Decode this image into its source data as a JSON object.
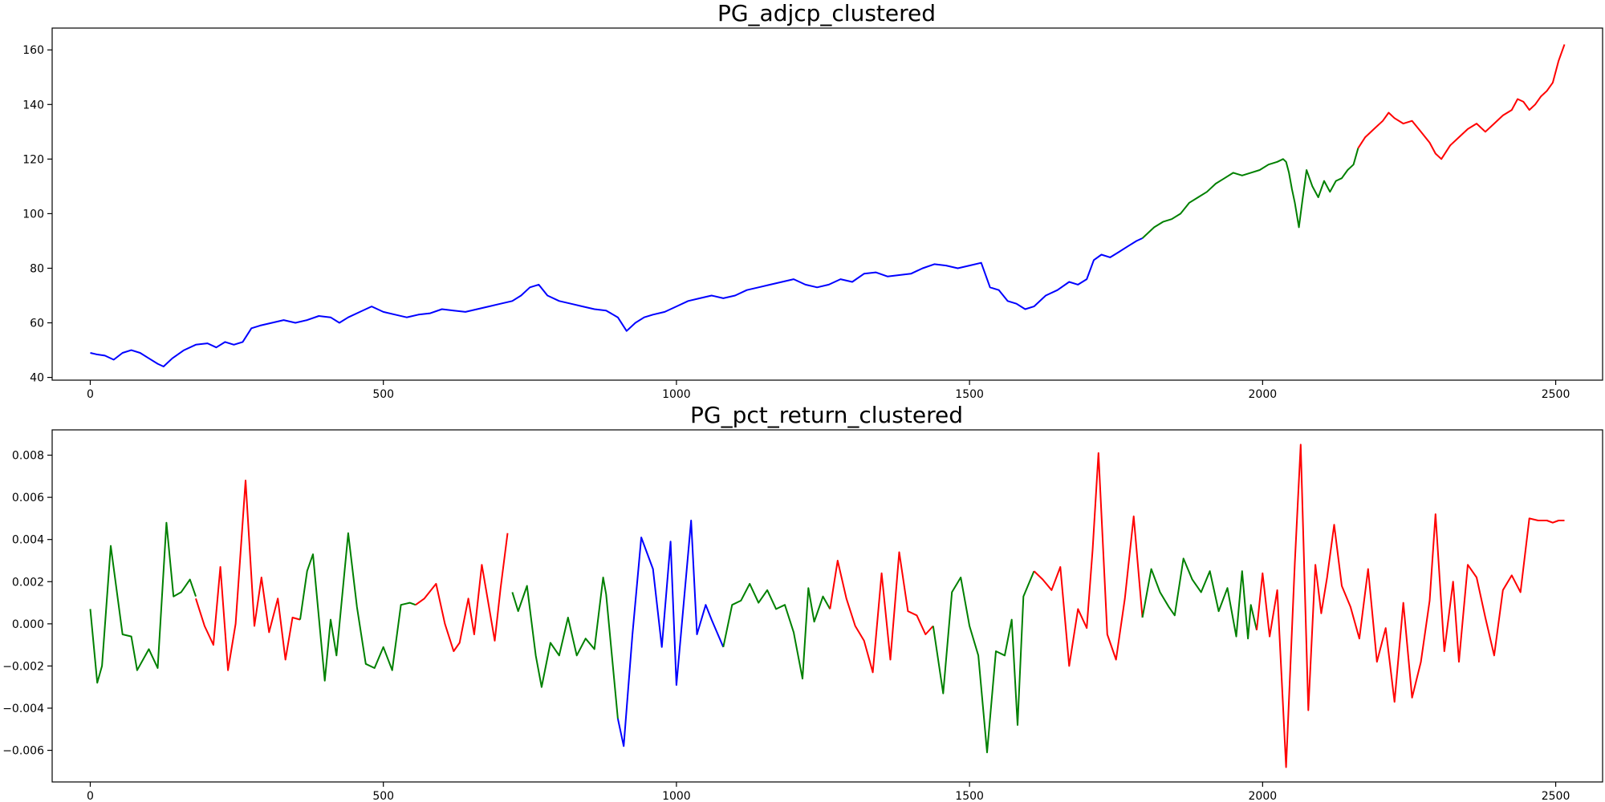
{
  "chart_data": [
    {
      "type": "line",
      "title": "PG_adjcp_clustered",
      "xlabel": "",
      "ylabel": "",
      "xlim": [
        -65,
        2580
      ],
      "ylim": [
        39,
        168
      ],
      "xticks": [
        0,
        500,
        1000,
        1500,
        2000,
        2500
      ],
      "yticks": [
        40,
        60,
        80,
        100,
        120,
        140,
        160
      ],
      "grid": false,
      "legend": "none",
      "colors": {
        "blue": "#0000ff",
        "green": "#008000",
        "red": "#ff0000"
      },
      "series": [
        {
          "color": "blue",
          "x": [
            0,
            10,
            25,
            40,
            55,
            70,
            85,
            100,
            115,
            125,
            140,
            160,
            180,
            200,
            215,
            230,
            245,
            260,
            275,
            290,
            310,
            330,
            350,
            370,
            390,
            410,
            425,
            440,
            460,
            480,
            500,
            520,
            540,
            560,
            580,
            600,
            620,
            640,
            660,
            680,
            700,
            720,
            735,
            750,
            765,
            780,
            800,
            820,
            840,
            860,
            880,
            900,
            915,
            930,
            945,
            960,
            980,
            1000,
            1020,
            1040,
            1060,
            1080,
            1100,
            1120,
            1140,
            1160,
            1180,
            1200,
            1220,
            1240,
            1260,
            1280,
            1300,
            1320,
            1340,
            1360,
            1380,
            1400,
            1420,
            1440,
            1460,
            1480,
            1500,
            1520,
            1535,
            1550,
            1565,
            1580,
            1595,
            1610,
            1630,
            1650,
            1670,
            1685,
            1700,
            1712,
            1725,
            1740,
            1755,
            1770,
            1785,
            1795
          ],
          "y": [
            49,
            48.5,
            48,
            46.5,
            49,
            50,
            49,
            47,
            45,
            44,
            47,
            50,
            52,
            52.5,
            51,
            53,
            52,
            53,
            58,
            59,
            60,
            61,
            60,
            61,
            62.5,
            62,
            60,
            62,
            64,
            66,
            64,
            63,
            62,
            63,
            63.5,
            65,
            64.5,
            64,
            65,
            66,
            67,
            68,
            70,
            73,
            74,
            70,
            68,
            67,
            66,
            65,
            64.5,
            62,
            57,
            60,
            62,
            63,
            64,
            66,
            68,
            69,
            70,
            69,
            70,
            72,
            73,
            74,
            75,
            76,
            74,
            73,
            74,
            76,
            75,
            78,
            78.5,
            77,
            77.5,
            78,
            80,
            81.5,
            81,
            80,
            81,
            82,
            73,
            72,
            68,
            67,
            65,
            66,
            70,
            72,
            75,
            74,
            76,
            83,
            85,
            84,
            86,
            88,
            90,
            91
          ]
        },
        {
          "color": "green",
          "x": [
            1795,
            1815,
            1830,
            1845,
            1860,
            1875,
            1890,
            1905,
            1920,
            1935,
            1950,
            1965,
            1980,
            1995,
            2010,
            2025,
            2035,
            2040,
            2045,
            2050,
            2055,
            2062,
            2068,
            2075,
            2085,
            2095,
            2105,
            2115,
            2125,
            2135,
            2145,
            2155,
            2163
          ],
          "y": [
            91,
            95,
            97,
            98,
            100,
            104,
            106,
            108,
            111,
            113,
            115,
            114,
            115,
            116,
            118,
            119,
            120,
            119,
            115,
            109,
            104,
            95,
            105,
            116,
            110,
            106,
            112,
            108,
            112,
            113,
            116,
            118,
            124
          ]
        },
        {
          "color": "red",
          "x": [
            2163,
            2175,
            2190,
            2205,
            2215,
            2225,
            2240,
            2255,
            2270,
            2285,
            2295,
            2305,
            2320,
            2335,
            2350,
            2365,
            2380,
            2395,
            2410,
            2425,
            2435,
            2445,
            2455,
            2465,
            2475,
            2485,
            2495,
            2505,
            2515
          ],
          "y": [
            124,
            128,
            131,
            134,
            137,
            135,
            133,
            134,
            130,
            126,
            122,
            120,
            125,
            128,
            131,
            133,
            130,
            133,
            136,
            138,
            142,
            141,
            138,
            140,
            143,
            145,
            148,
            156,
            162
          ]
        }
      ]
    },
    {
      "type": "line",
      "title": "PG_pct_return_clustered",
      "xlabel": "",
      "ylabel": "",
      "xlim": [
        -65,
        2580
      ],
      "ylim": [
        -0.0075,
        0.0092
      ],
      "xticks": [
        0,
        500,
        1000,
        1500,
        2000,
        2500
      ],
      "yticks": [
        -0.006,
        -0.004,
        -0.002,
        0.0,
        0.002,
        0.004,
        0.006,
        0.008
      ],
      "grid": false,
      "legend": "none",
      "colors": {
        "blue": "#0000ff",
        "green": "#008000",
        "red": "#ff0000"
      },
      "series": [
        {
          "color": "green",
          "x": [
            0,
            12,
            20,
            35,
            55,
            70,
            80,
            100,
            115,
            130,
            142,
            155,
            170,
            180
          ],
          "y": [
            0.0007,
            -0.0028,
            -0.002,
            0.0037,
            -0.0005,
            -0.0006,
            -0.0022,
            -0.0012,
            -0.0021,
            0.0048,
            0.0013,
            0.0015,
            0.0021,
            0.0013
          ]
        },
        {
          "color": "red",
          "x": [
            180,
            195,
            210,
            222,
            235,
            248,
            265,
            280,
            292,
            305,
            320,
            333,
            345,
            358
          ],
          "y": [
            0.0012,
            -0.0001,
            -0.001,
            0.0027,
            -0.0022,
            0.0,
            0.0068,
            -0.0001,
            0.0022,
            -0.0004,
            0.0012,
            -0.0017,
            0.0003,
            0.0002
          ]
        },
        {
          "color": "green",
          "x": [
            358,
            370,
            380,
            400,
            410,
            420,
            440,
            455,
            470,
            485,
            500,
            515,
            530,
            545,
            555
          ],
          "y": [
            0.0002,
            0.0025,
            0.0033,
            -0.0027,
            0.0002,
            -0.0015,
            0.0043,
            0.0008,
            -0.0019,
            -0.0021,
            -0.0011,
            -0.0022,
            0.0009,
            0.001,
            0.0009
          ]
        },
        {
          "color": "red",
          "x": [
            555,
            570,
            590,
            605,
            620,
            630,
            645,
            655,
            668,
            690,
            700,
            712
          ],
          "y": [
            0.0009,
            0.0012,
            0.0019,
            0.0,
            -0.0013,
            -0.0009,
            0.0012,
            -0.0005,
            0.0028,
            -0.0008,
            0.0017,
            0.0043
          ]
        },
        {
          "color": "green",
          "x": [
            720,
            730,
            745,
            760,
            770,
            785,
            800,
            815,
            830,
            845,
            860,
            875,
            880,
            900
          ],
          "y": [
            0.0015,
            0.0006,
            0.0018,
            -0.0015,
            -0.003,
            -0.0009,
            -0.0015,
            0.0003,
            -0.0015,
            -0.0007,
            -0.0012,
            0.0022,
            0.0014,
            -0.0045
          ]
        },
        {
          "color": "blue",
          "x": [
            900,
            910,
            925,
            940,
            960,
            975,
            990,
            1000,
            1015,
            1025,
            1035,
            1050,
            1060,
            1080
          ],
          "y": [
            -0.0045,
            -0.0058,
            -0.0005,
            0.0041,
            0.0026,
            -0.0011,
            0.0039,
            -0.0029,
            0.0018,
            0.0049,
            -0.0005,
            0.0009,
            0.0002,
            -0.0011
          ]
        },
        {
          "color": "green",
          "x": [
            1080,
            1095,
            1110,
            1125,
            1140,
            1155,
            1170,
            1185,
            1200,
            1215,
            1225,
            1235,
            1250,
            1262
          ],
          "y": [
            -0.0011,
            0.0009,
            0.0011,
            0.0019,
            0.001,
            0.0016,
            0.0007,
            0.0009,
            -0.0004,
            -0.0026,
            0.0017,
            0.0001,
            0.0013,
            0.0007
          ]
        },
        {
          "color": "red",
          "x": [
            1262,
            1275,
            1290,
            1305,
            1320,
            1335,
            1350,
            1365,
            1380,
            1395,
            1410,
            1425,
            1438
          ],
          "y": [
            0.0007,
            0.003,
            0.0012,
            -0.0001,
            -0.0008,
            -0.0023,
            0.0024,
            -0.0017,
            0.0034,
            0.0006,
            0.0004,
            -0.0005,
            -0.0001
          ]
        },
        {
          "color": "green",
          "x": [
            1438,
            1455,
            1470,
            1485,
            1500,
            1515,
            1530,
            1545,
            1560,
            1572,
            1582,
            1592,
            1610
          ],
          "y": [
            -0.0001,
            -0.0033,
            0.0015,
            0.0022,
            -0.0001,
            -0.0015,
            -0.0061,
            -0.0013,
            -0.0015,
            0.0002,
            -0.0048,
            0.0013,
            0.0025
          ]
        },
        {
          "color": "red",
          "x": [
            1610,
            1625,
            1640,
            1655,
            1670,
            1685,
            1700,
            1710,
            1720,
            1735,
            1750,
            1765,
            1780,
            1795
          ],
          "y": [
            0.0025,
            0.0021,
            0.0016,
            0.0027,
            -0.002,
            0.0007,
            -0.0002,
            0.0035,
            0.0081,
            -0.0005,
            -0.0017,
            0.0012,
            0.0051,
            0.0003
          ]
        },
        {
          "color": "green",
          "x": [
            1795,
            1810,
            1825,
            1840,
            1850,
            1865,
            1880,
            1895,
            1910,
            1925,
            1940,
            1955,
            1965,
            1975,
            1980,
            1990
          ],
          "y": [
            0.0003,
            0.0026,
            0.0015,
            0.0008,
            0.0004,
            0.0031,
            0.0021,
            0.0015,
            0.0025,
            0.0006,
            0.0017,
            -0.0006,
            0.0025,
            -0.0007,
            0.0009,
            -0.0003
          ]
        },
        {
          "color": "red",
          "x": [
            1990,
            2000,
            2012,
            2025,
            2040,
            2055,
            2065,
            2078,
            2090,
            2100,
            2110,
            2122,
            2135,
            2150,
            2165,
            2180,
            2195,
            2210,
            2225,
            2240,
            2255,
            2270,
            2285,
            2295,
            2310,
            2325,
            2335,
            2350,
            2365,
            2380,
            2395,
            2410,
            2425,
            2440,
            2455,
            2470,
            2485,
            2495,
            2505,
            2515
          ],
          "y": [
            -0.0003,
            0.0024,
            -0.0006,
            0.0016,
            -0.0068,
            0.0029,
            0.0085,
            -0.0041,
            0.0028,
            0.0005,
            0.0022,
            0.0047,
            0.0018,
            0.0008,
            -0.0007,
            0.0026,
            -0.0018,
            -0.0002,
            -0.0037,
            0.001,
            -0.0035,
            -0.0018,
            0.0011,
            0.0052,
            -0.0013,
            0.002,
            -0.0018,
            0.0028,
            0.0022,
            0.0003,
            -0.0015,
            0.0016,
            0.0023,
            0.0015,
            0.005,
            0.0049,
            0.0049,
            0.0048,
            0.0049,
            0.0049
          ]
        }
      ]
    }
  ]
}
